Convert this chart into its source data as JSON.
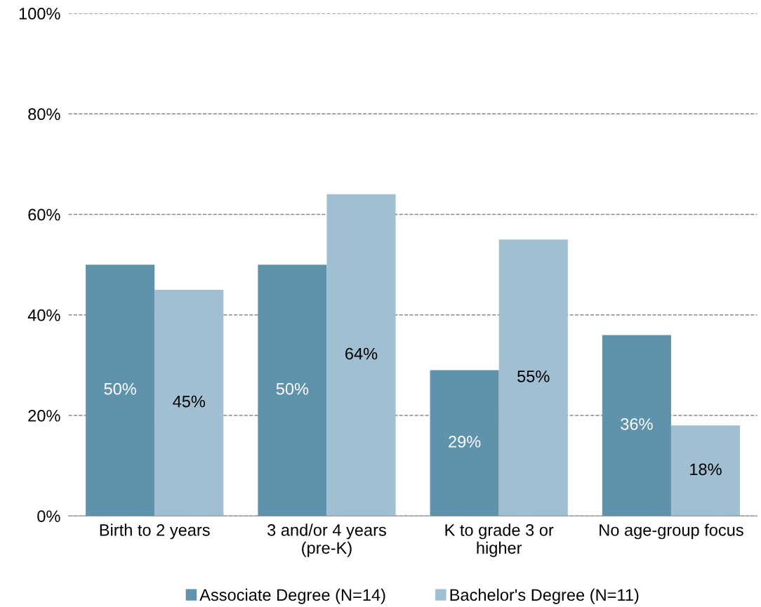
{
  "chart_data": {
    "type": "bar",
    "categories": [
      "Birth to 2 years",
      "3 and/or 4 years\n(pre-K)",
      "K to grade 3 or\nhigher",
      "No age-group focus"
    ],
    "series": [
      {
        "name": "Associate Degree (N=14)",
        "color": "#5f93ab",
        "values": [
          50,
          50,
          29,
          36
        ],
        "value_labels": [
          "50%",
          "50%",
          "29%",
          "36%"
        ]
      },
      {
        "name": "Bachelor's Degree (N=11)",
        "color": "#a0bfd3",
        "values": [
          45,
          64,
          55,
          18
        ],
        "value_labels": [
          "45%",
          "64%",
          "55%",
          "18%"
        ]
      }
    ],
    "ylim": [
      0,
      100
    ],
    "yticks": [
      {
        "value": 0,
        "label": "0%"
      },
      {
        "value": 20,
        "label": "20%"
      },
      {
        "value": 40,
        "label": "40%"
      },
      {
        "value": 60,
        "label": "60%"
      },
      {
        "value": 80,
        "label": "80%"
      },
      {
        "value": 100,
        "label": "100%"
      }
    ],
    "grid": "y",
    "legend": "bottom"
  }
}
